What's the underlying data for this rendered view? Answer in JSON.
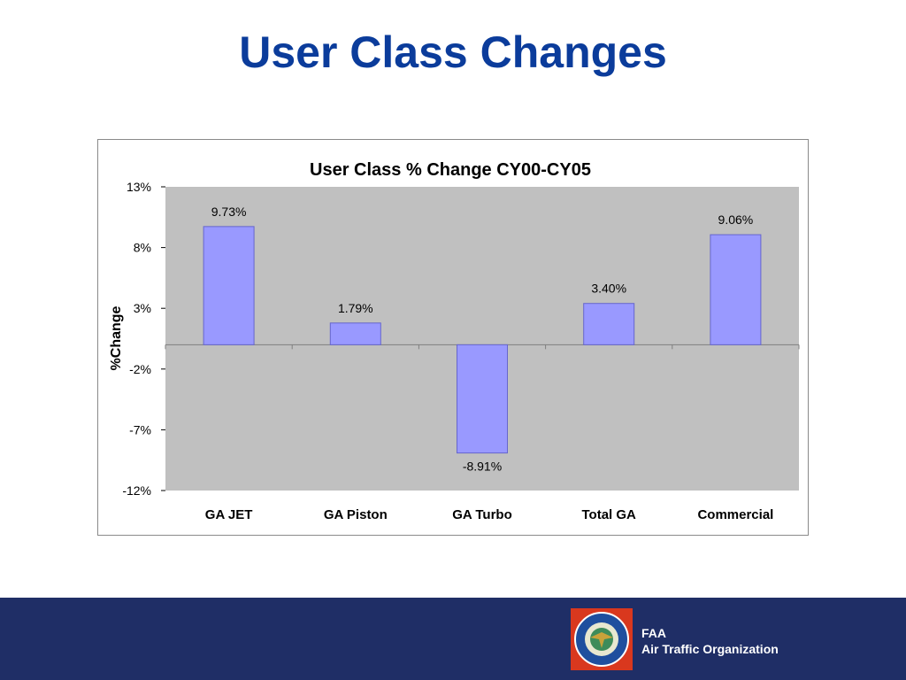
{
  "slide": {
    "title": "User Class Changes"
  },
  "chart_data": {
    "type": "bar",
    "title": "User Class % Change CY00-CY05",
    "xlabel": "",
    "ylabel": "%Change",
    "categories": [
      "GA JET",
      "GA Piston",
      "GA Turbo",
      "Total GA",
      "Commercial"
    ],
    "values": [
      9.73,
      1.79,
      -8.91,
      3.4,
      9.06
    ],
    "data_labels": [
      "9.73%",
      "1.79%",
      "-8.91%",
      "3.40%",
      "9.06%"
    ],
    "ylim": [
      -12,
      13
    ],
    "yticks": [
      13,
      8,
      3,
      -2,
      -7,
      -12
    ],
    "ytick_labels": [
      "13%",
      "8%",
      "3%",
      "-2%",
      "-7%",
      "-12%"
    ],
    "grid": false,
    "legend": "none",
    "colors": {
      "bar_fill": "#9999ff",
      "bar_stroke": "#6666cc",
      "plot_bg": "#c0c0c0"
    }
  },
  "footer": {
    "line1": "FAA",
    "line2": "Air Traffic Organization",
    "logo_icon": "faa-seal-icon",
    "colors": {
      "band": "#1f2e66"
    }
  }
}
